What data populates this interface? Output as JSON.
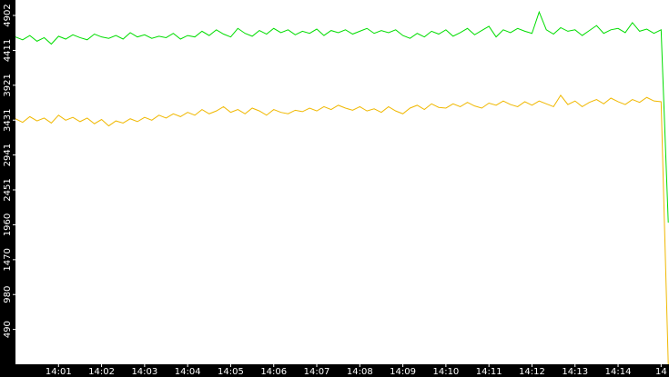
{
  "chart_data": {
    "type": "line",
    "x": [
      0,
      10,
      20,
      30,
      40,
      50,
      60,
      70,
      80,
      90,
      100,
      110,
      120,
      130,
      140,
      150,
      160,
      170,
      180,
      190,
      200,
      210,
      220,
      230,
      240,
      250,
      260,
      270,
      280,
      290,
      300,
      310,
      320,
      330,
      340,
      350,
      360,
      370,
      380,
      390,
      400,
      410,
      420,
      430,
      440,
      450,
      460,
      470,
      480,
      490,
      500,
      510,
      520,
      530,
      540,
      550,
      560,
      570,
      580,
      590,
      600,
      610,
      620,
      630,
      640,
      650,
      660,
      670,
      680,
      690,
      700,
      710,
      720,
      730,
      740,
      750,
      760,
      770,
      780,
      790,
      800,
      810,
      820,
      830,
      840,
      850,
      860,
      870,
      880,
      890,
      900,
      910
    ],
    "series": [
      {
        "color": "#00dd00",
        "values": [
          4600,
          4560,
          4620,
          4540,
          4590,
          4500,
          4610,
          4570,
          4630,
          4590,
          4560,
          4640,
          4600,
          4580,
          4620,
          4570,
          4660,
          4600,
          4630,
          4580,
          4610,
          4590,
          4650,
          4570,
          4620,
          4600,
          4680,
          4620,
          4700,
          4640,
          4600,
          4720,
          4650,
          4610,
          4690,
          4640,
          4720,
          4660,
          4700,
          4630,
          4680,
          4650,
          4710,
          4620,
          4690,
          4660,
          4700,
          4640,
          4680,
          4720,
          4650,
          4690,
          4660,
          4700,
          4620,
          4580,
          4650,
          4600,
          4680,
          4640,
          4700,
          4610,
          4660,
          4720,
          4630,
          4690,
          4750,
          4600,
          4700,
          4660,
          4720,
          4680,
          4650,
          4950,
          4700,
          4640,
          4730,
          4680,
          4700,
          4620,
          4690,
          4760,
          4650,
          4700,
          4720,
          4660,
          4800,
          4680,
          4710,
          4650,
          4700,
          1990
        ]
      },
      {
        "color": "#f0b800",
        "values": [
          3450,
          3400,
          3480,
          3420,
          3460,
          3390,
          3500,
          3430,
          3470,
          3410,
          3460,
          3380,
          3440,
          3350,
          3420,
          3390,
          3450,
          3410,
          3470,
          3430,
          3500,
          3460,
          3520,
          3480,
          3540,
          3500,
          3580,
          3520,
          3560,
          3620,
          3540,
          3580,
          3520,
          3600,
          3560,
          3500,
          3580,
          3540,
          3520,
          3570,
          3550,
          3600,
          3560,
          3620,
          3580,
          3640,
          3600,
          3570,
          3620,
          3560,
          3590,
          3540,
          3620,
          3560,
          3520,
          3600,
          3640,
          3580,
          3660,
          3610,
          3600,
          3660,
          3620,
          3680,
          3630,
          3600,
          3670,
          3640,
          3700,
          3650,
          3620,
          3690,
          3640,
          3700,
          3660,
          3620,
          3780,
          3650,
          3700,
          3620,
          3680,
          3720,
          3660,
          3740,
          3690,
          3650,
          3720,
          3680,
          3750,
          3700,
          3690,
          0
        ]
      }
    ],
    "xlim": [
      0,
      911
    ],
    "xticks": [
      {
        "value": 60,
        "label": "14:01"
      },
      {
        "value": 120,
        "label": "14:02"
      },
      {
        "value": 180,
        "label": "14:03"
      },
      {
        "value": 240,
        "label": "14:04"
      },
      {
        "value": 300,
        "label": "14:05"
      },
      {
        "value": 360,
        "label": "14:06"
      },
      {
        "value": 420,
        "label": "14:07"
      },
      {
        "value": 480,
        "label": "14:08"
      },
      {
        "value": 540,
        "label": "14:09"
      },
      {
        "value": 600,
        "label": "14:10"
      },
      {
        "value": 660,
        "label": "14:11"
      },
      {
        "value": 720,
        "label": "14:12"
      },
      {
        "value": 780,
        "label": "14:13"
      },
      {
        "value": 840,
        "label": "14:14"
      },
      {
        "value": 900,
        "label": "14"
      }
    ],
    "ylim": [
      0,
      5119
    ],
    "yticks": [
      490,
      980,
      1470,
      1960,
      2451,
      2941,
      3431,
      3921,
      4411,
      4902
    ]
  }
}
